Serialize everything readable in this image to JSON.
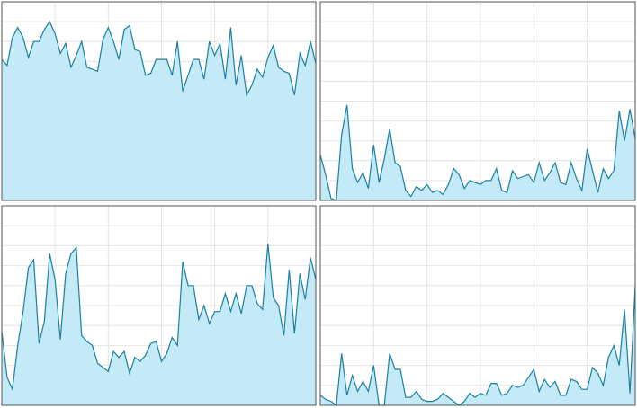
{
  "chart_data": [
    {
      "type": "area",
      "color": "#1a7fa0",
      "fill": "#c4eaf8",
      "grid": true,
      "xlim": [
        0,
        59
      ],
      "xticks": [
        0,
        10,
        20,
        30,
        40,
        50
      ],
      "ylim": [
        0,
        100
      ],
      "yticks": [
        0,
        10,
        20,
        30,
        40,
        50,
        60,
        70,
        80,
        90,
        100
      ],
      "values": [
        71,
        68,
        82,
        87,
        82,
        72,
        80,
        80,
        86,
        90,
        84,
        74,
        79,
        67,
        73,
        80,
        67,
        66,
        65,
        81,
        87,
        80,
        71,
        86,
        88,
        76,
        75,
        63,
        64,
        71,
        71,
        71,
        63,
        80,
        55,
        63,
        71,
        71,
        61,
        80,
        73,
        79,
        61,
        87,
        58,
        73,
        53,
        58,
        66,
        62,
        72,
        78,
        67,
        65,
        64,
        53,
        74,
        68,
        80,
        69
      ]
    },
    {
      "type": "area",
      "color": "#1a7fa0",
      "fill": "#c4eaf8",
      "grid": true,
      "xlim": [
        0,
        59
      ],
      "xticks": [
        0,
        10,
        20,
        30,
        40,
        50
      ],
      "ylim": [
        0,
        100
      ],
      "yticks": [
        0,
        10,
        20,
        30,
        40,
        50,
        60,
        70,
        80,
        90,
        100
      ],
      "values": [
        23,
        13,
        1,
        0,
        33,
        48,
        16,
        9,
        14,
        6,
        28,
        9,
        21,
        36,
        19,
        17,
        5,
        2,
        7,
        5,
        8,
        4,
        5,
        3,
        8,
        16,
        13,
        6,
        10,
        9,
        8,
        10,
        10,
        16,
        5,
        4,
        15,
        11,
        12,
        13,
        9,
        19,
        10,
        14,
        19,
        9,
        8,
        19,
        11,
        5,
        26,
        15,
        4,
        16,
        11,
        15,
        45,
        30,
        46,
        31
      ]
    },
    {
      "type": "area",
      "color": "#1a7fa0",
      "fill": "#c4eaf8",
      "grid": true,
      "xlim": [
        0,
        59
      ],
      "xticks": [
        0,
        10,
        20,
        30,
        40,
        50
      ],
      "ylim": [
        0,
        100
      ],
      "yticks": [
        0,
        10,
        20,
        30,
        40,
        50,
        60,
        70,
        80,
        90,
        100
      ],
      "values": [
        37,
        14,
        8,
        30,
        47,
        69,
        73,
        31,
        42,
        76,
        63,
        33,
        66,
        76,
        79,
        35,
        32,
        30,
        21,
        19,
        17,
        27,
        24,
        27,
        16,
        24,
        22,
        25,
        31,
        32,
        22,
        26,
        34,
        30,
        72,
        60,
        60,
        43,
        50,
        41,
        47,
        47,
        56,
        47,
        56,
        46,
        60,
        60,
        51,
        48,
        81,
        54,
        50,
        35,
        68,
        36,
        66,
        53,
        74,
        63
      ]
    },
    {
      "type": "area",
      "color": "#1a7fa0",
      "fill": "#c4eaf8",
      "grid": true,
      "xlim": [
        0,
        59
      ],
      "xticks": [
        0,
        10,
        20,
        30,
        40,
        50
      ],
      "ylim": [
        0,
        100
      ],
      "yticks": [
        0,
        10,
        20,
        30,
        40,
        50,
        60,
        70,
        80,
        90,
        100
      ],
      "values": [
        5,
        3,
        2,
        0,
        26,
        5,
        15,
        7,
        12,
        7,
        20,
        0,
        0,
        26,
        18,
        18,
        4,
        4,
        7,
        3,
        2,
        2,
        3,
        6,
        4,
        2,
        0,
        2,
        6,
        4,
        6,
        5,
        11,
        11,
        5,
        6,
        10,
        9,
        10,
        14,
        18,
        7,
        13,
        9,
        12,
        5,
        5,
        13,
        12,
        8,
        8,
        19,
        16,
        10,
        24,
        30,
        20,
        48,
        6,
        60
      ]
    }
  ]
}
